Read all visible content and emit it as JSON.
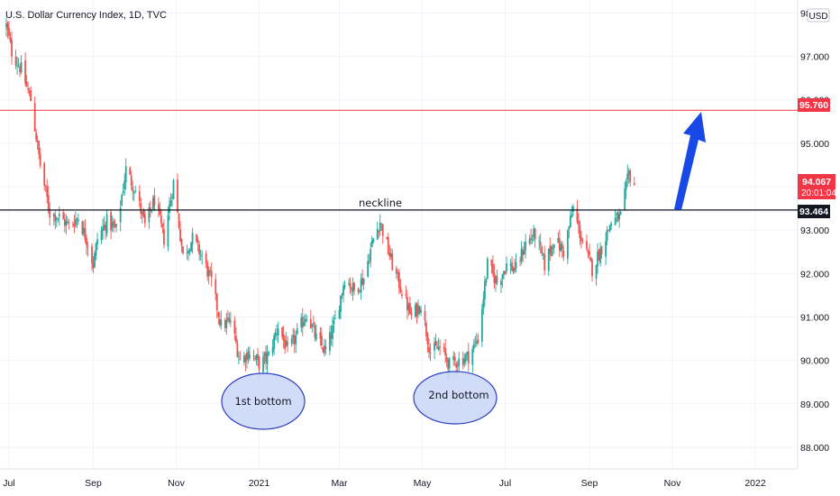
{
  "chart_data": {
    "type": "candlestick",
    "title": "U.S. Dollar Currency Index, 1D, TVC",
    "currency": "USD",
    "ylim": [
      87.5,
      98.3
    ],
    "yticks": [
      "88.000",
      "89.000",
      "90.000",
      "91.000",
      "92.000",
      "93.000",
      "94.000",
      "95.000",
      "96.000",
      "97.000",
      "98.000"
    ],
    "xticks": [
      "Jul",
      "Sep",
      "Nov",
      "2021",
      "Mar",
      "May",
      "Jul",
      "Sep",
      "Nov",
      "2022"
    ],
    "price_points": [
      [
        "2020-06-29",
        97.7
      ],
      [
        "2020-07-03",
        97.1
      ],
      [
        "2020-07-10",
        96.7
      ],
      [
        "2020-07-17",
        96.0
      ],
      [
        "2020-07-24",
        94.5
      ],
      [
        "2020-07-31",
        93.4
      ],
      [
        "2020-08-07",
        93.3
      ],
      [
        "2020-08-14",
        93.1
      ],
      [
        "2020-08-21",
        93.3
      ],
      [
        "2020-08-28",
        92.7
      ],
      [
        "2020-09-01",
        92.2
      ],
      [
        "2020-09-04",
        92.8
      ],
      [
        "2020-09-11",
        93.2
      ],
      [
        "2020-09-18",
        93.0
      ],
      [
        "2020-09-25",
        94.4
      ],
      [
        "2020-10-02",
        93.9
      ],
      [
        "2020-10-09",
        93.1
      ],
      [
        "2020-10-16",
        93.7
      ],
      [
        "2020-10-23",
        92.8
      ],
      [
        "2020-10-30",
        94.1
      ],
      [
        "2020-11-06",
        92.4
      ],
      [
        "2020-11-13",
        92.8
      ],
      [
        "2020-11-20",
        92.4
      ],
      [
        "2020-11-27",
        91.8
      ],
      [
        "2020-12-04",
        90.8
      ],
      [
        "2020-12-11",
        90.9
      ],
      [
        "2020-12-18",
        90.0
      ],
      [
        "2020-12-25",
        90.2
      ],
      [
        "2021-01-01",
        89.9
      ],
      [
        "2021-01-08",
        90.1
      ],
      [
        "2021-01-15",
        90.8
      ],
      [
        "2021-01-22",
        90.2
      ],
      [
        "2021-01-29",
        90.6
      ],
      [
        "2021-02-05",
        91.1
      ],
      [
        "2021-02-12",
        90.5
      ],
      [
        "2021-02-19",
        90.2
      ],
      [
        "2021-02-26",
        90.9
      ],
      [
        "2021-03-05",
        91.9
      ],
      [
        "2021-03-12",
        91.6
      ],
      [
        "2021-03-19",
        91.9
      ],
      [
        "2021-03-26",
        92.8
      ],
      [
        "2021-03-31",
        93.2
      ],
      [
        "2021-04-09",
        92.2
      ],
      [
        "2021-04-16",
        91.6
      ],
      [
        "2021-04-23",
        91.0
      ],
      [
        "2021-04-30",
        91.3
      ],
      [
        "2021-05-07",
        90.2
      ],
      [
        "2021-05-14",
        90.3
      ],
      [
        "2021-05-21",
        89.9
      ],
      [
        "2021-05-28",
        90.0
      ],
      [
        "2021-06-04",
        90.1
      ],
      [
        "2021-06-11",
        90.5
      ],
      [
        "2021-06-18",
        92.2
      ],
      [
        "2021-06-25",
        91.8
      ],
      [
        "2021-07-02",
        92.2
      ],
      [
        "2021-07-09",
        92.1
      ],
      [
        "2021-07-16",
        92.7
      ],
      [
        "2021-07-23",
        92.9
      ],
      [
        "2021-07-30",
        92.2
      ],
      [
        "2021-08-06",
        92.8
      ],
      [
        "2021-08-13",
        92.5
      ],
      [
        "2021-08-20",
        93.5
      ],
      [
        "2021-08-27",
        92.7
      ],
      [
        "2021-09-03",
        92.1
      ],
      [
        "2021-09-10",
        92.6
      ],
      [
        "2021-09-17",
        93.2
      ],
      [
        "2021-09-24",
        93.3
      ],
      [
        "2021-09-30",
        94.3
      ],
      [
        "2021-10-05",
        94.0
      ]
    ],
    "horizontal_levels": [
      {
        "value": 95.76,
        "label": "95.760",
        "color": "#f23645"
      },
      {
        "value": 93.464,
        "label": "93.464",
        "color": "#131722"
      }
    ],
    "last_price": {
      "label": "94.067",
      "countdown": "20:01:04",
      "value": 94.067,
      "color": "#f23645"
    },
    "annotations": {
      "neckline": "neckline",
      "first_bottom": "1st bottom",
      "second_bottom": "2nd bottom"
    },
    "colors": {
      "up": "#26a69a",
      "down": "#ef5350",
      "arrow": "#1848e6",
      "ellipse_fill": "#c9d6f8",
      "ellipse_stroke": "#2b3fc4"
    }
  }
}
